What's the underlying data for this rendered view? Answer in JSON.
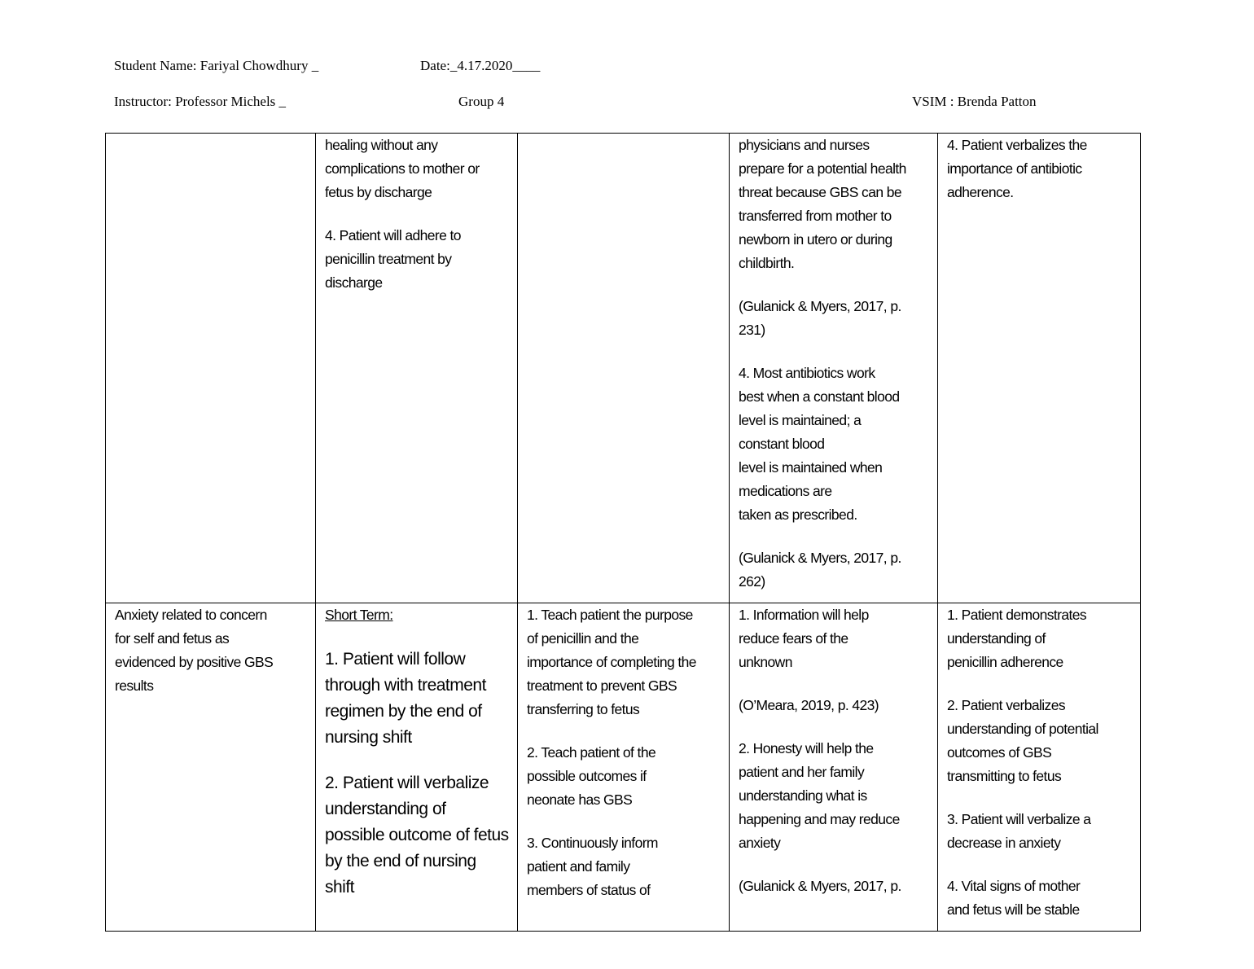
{
  "header": {
    "student_name": "Student Name: Fariyal Chowdhury _",
    "date": "Date:_4.17.2020____",
    "instructor": "Instructor: Professor Michels _",
    "group": "Group 4",
    "vsim": "VSIM : Brenda Patton"
  },
  "table": {
    "rows": [
      [
        [],
        [
          [
            "healing without any",
            "complications to mother or",
            "fetus by discharge"
          ],
          [
            "4. Patient will adhere to",
            "penicillin treatment by",
            "discharge"
          ]
        ],
        [],
        [
          [
            "physicians and nurses",
            "prepare for a potential health",
            "threat because GBS can be",
            "transferred from mother to",
            "newborn in utero or during",
            "childbirth."
          ],
          [
            "(Gulanick & Myers, 2017, p.",
            "231)"
          ],
          [
            "4. Most antibiotics work",
            "best when a constant blood",
            "level is maintained; a",
            "constant blood",
            "level is maintained when",
            "medications are",
            "taken as prescribed."
          ],
          [
            "(Gulanick & Myers, 2017, p.",
            "262)"
          ]
        ],
        [
          [
            "4. Patient verbalizes the",
            "importance of antibiotic",
            "adherence."
          ]
        ]
      ],
      [
        [
          [
            "Anxiety related to concern",
            "for self and fetus as",
            "evidenced by positive GBS",
            "results"
          ]
        ],
        [
          [
            "Short Term:"
          ],
          [
            "1. Patient will follow",
            "through with treatment",
            "regimen by the end of",
            "nursing shift"
          ],
          [
            "2. Patient will verbalize",
            "understanding of",
            "possible outcome of fetus",
            "by the end of nursing",
            "shift"
          ]
        ],
        [
          [
            "1. Teach patient the purpose",
            "of penicillin and the",
            "importance of completing the",
            "treatment to prevent GBS",
            "transferring to fetus"
          ],
          [
            "2. Teach patient of the",
            "possible outcomes if",
            "neonate has GBS"
          ],
          [
            "3. Continuously inform",
            "patient and family",
            "members of status of"
          ]
        ],
        [
          [
            "1. Information will help",
            "reduce fears of the",
            "unknown"
          ],
          [
            "(O’Meara, 2019, p. 423)"
          ],
          [
            "2. Honesty will help the",
            "patient and her family",
            "understanding what is",
            "happening and may reduce",
            "anxiety"
          ],
          [
            "(Gulanick & Myers, 2017, p."
          ]
        ],
        [
          [
            "1. Patient demonstrates",
            "understanding of",
            "penicillin adherence"
          ],
          [
            "2. Patient verbalizes",
            "understanding of potential",
            "outcomes of GBS",
            "transmitting to fetus"
          ],
          [
            "3. Patient will verbalize a",
            "decrease in anxiety"
          ],
          [
            "4. Vital signs of mother",
            "and fetus will be stable"
          ]
        ]
      ]
    ]
  }
}
